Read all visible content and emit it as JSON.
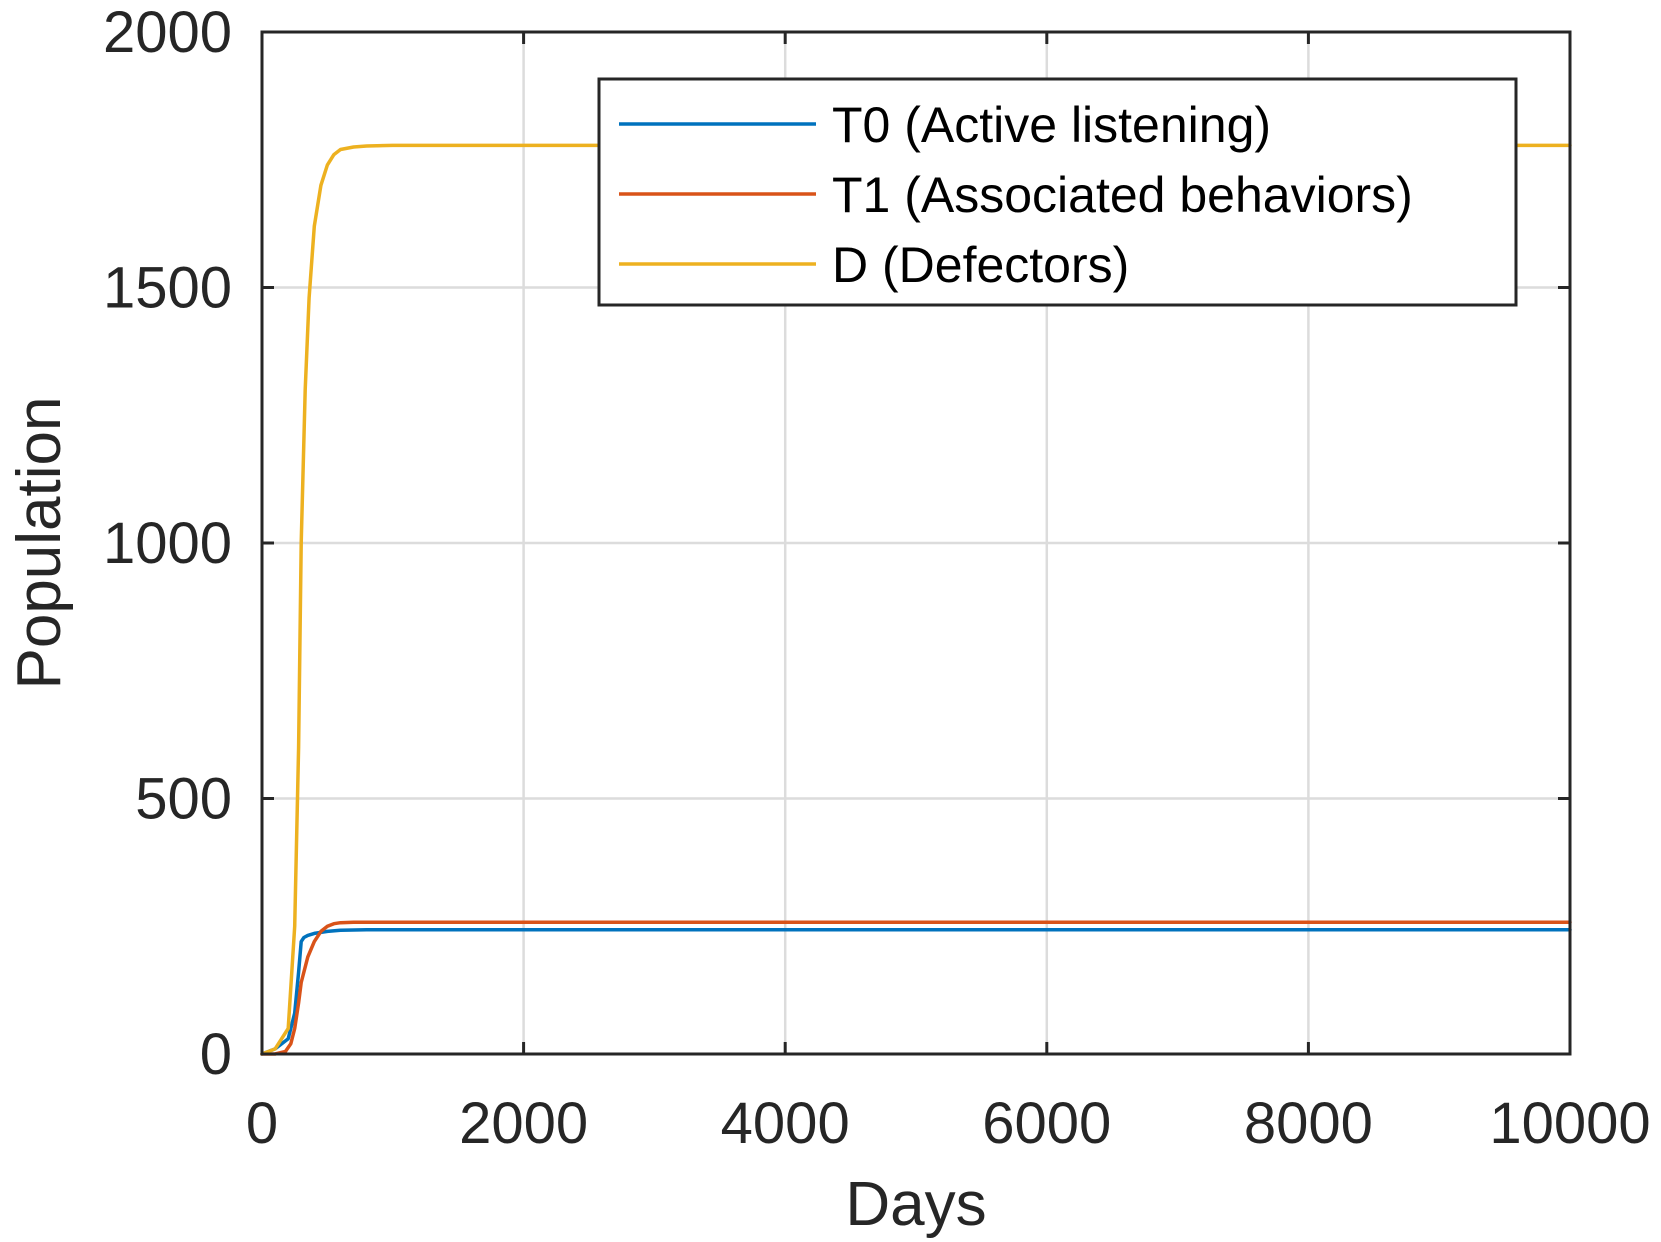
{
  "chart_data": {
    "type": "line",
    "title": "",
    "xlabel": "Days",
    "ylabel": "Population",
    "xlim": [
      0,
      10000
    ],
    "ylim": [
      0,
      2000
    ],
    "xticks": [
      0,
      2000,
      4000,
      6000,
      8000,
      10000
    ],
    "yticks": [
      0,
      500,
      1000,
      1500,
      2000
    ],
    "xtick_labels": [
      "0",
      "2000",
      "4000",
      "6000",
      "8000",
      "10000"
    ],
    "ytick_labels": [
      "0",
      "500",
      "1000",
      "1500",
      "2000"
    ],
    "grid": true,
    "legend_position": "top-right",
    "series": [
      {
        "name": "T0 (Active listening)",
        "color": "#0072BD",
        "x": [
          0,
          100,
          200,
          250,
          280,
          300,
          320,
          350,
          400,
          500,
          600,
          800,
          1000,
          2000,
          4000,
          6000,
          8000,
          10000
        ],
        "y": [
          0,
          10,
          30,
          80,
          160,
          220,
          228,
          232,
          236,
          240,
          242,
          243,
          243,
          243,
          243,
          243,
          243,
          243
        ]
      },
      {
        "name": "T1 (Associated behaviors)",
        "color": "#D95319",
        "x": [
          0,
          100,
          180,
          220,
          250,
          280,
          300,
          350,
          400,
          450,
          500,
          550,
          600,
          700,
          800,
          1000,
          2000,
          4000,
          6000,
          8000,
          10000
        ],
        "y": [
          0,
          0,
          5,
          20,
          50,
          100,
          140,
          190,
          220,
          240,
          250,
          255,
          257,
          258,
          258,
          258,
          258,
          258,
          258,
          258,
          258
        ]
      },
      {
        "name": "D (Defectors)",
        "color": "#EDB120",
        "x": [
          0,
          100,
          200,
          250,
          280,
          300,
          330,
          360,
          400,
          450,
          500,
          550,
          600,
          700,
          800,
          1000,
          2000,
          4000,
          6000,
          8000,
          10000
        ],
        "y": [
          0,
          10,
          50,
          250,
          600,
          1000,
          1300,
          1480,
          1620,
          1700,
          1740,
          1760,
          1770,
          1775,
          1777,
          1778,
          1778,
          1778,
          1778,
          1778,
          1778
        ]
      }
    ]
  }
}
